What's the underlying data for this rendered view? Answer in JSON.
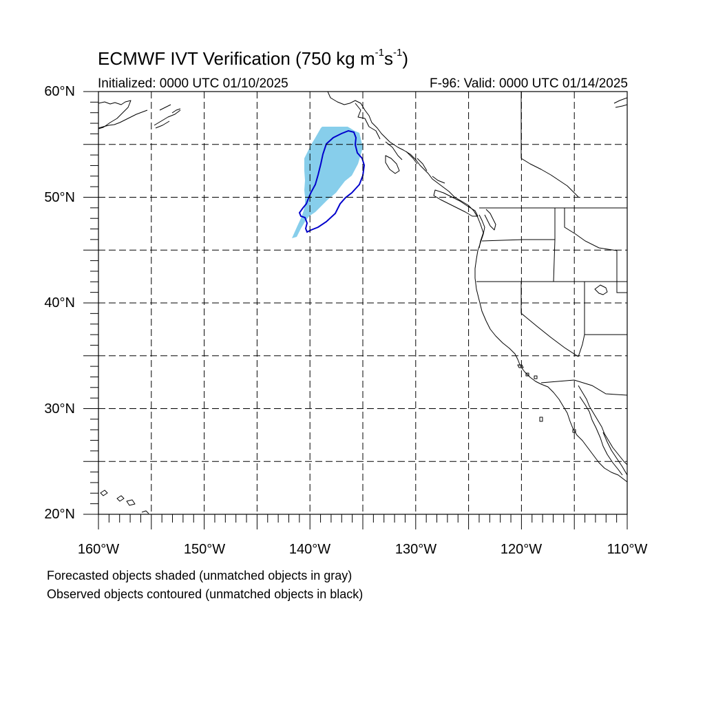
{
  "title": {
    "main": "ECMWF IVT Verification (750 kg m",
    "sup1": "-1",
    "mid": "s",
    "sup2": "-1",
    "end": ")"
  },
  "initialized": "Initialized: 0000 UTC 01/10/2025",
  "valid": "F-96: Valid: 0000 UTC 01/14/2025",
  "map": {
    "lon_range": [
      -160,
      -110
    ],
    "lat_range": [
      20,
      60
    ],
    "gridlines": "dashed",
    "grid_interval_deg": 5,
    "lat_labels": [
      "60°N",
      "50°N",
      "40°N",
      "30°N",
      "20°N"
    ],
    "lon_labels": [
      "160°W",
      "150°W",
      "140°W",
      "130°W",
      "120°W",
      "110°W"
    ],
    "forecast_object_color": "#87ceeb",
    "observed_contour_color": "#0000cc"
  },
  "footer": {
    "line1": "Forecasted objects shaded (unmatched objects in gray)",
    "line2": "Observed objects contoured (unmatched objects in black)"
  }
}
